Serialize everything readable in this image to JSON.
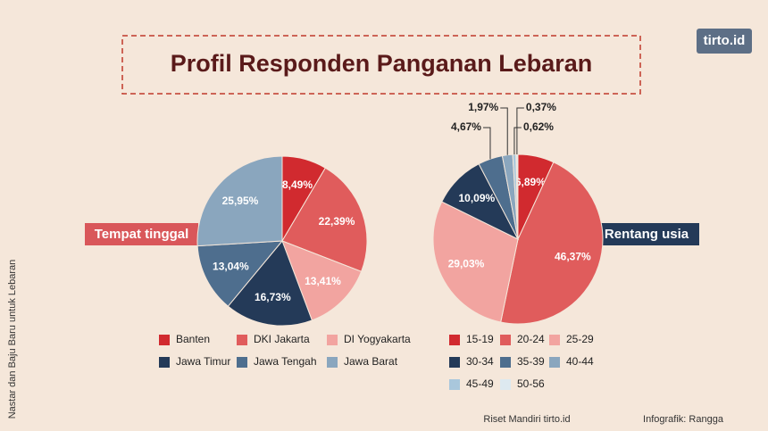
{
  "title": "Profil Responden Panganan Lebaran",
  "logo": "tirto.id",
  "side_note": "Nastar dan Baju Baru untuk Lebaran",
  "source": "Riset Mandiri tirto.id",
  "credit": "Infografik: Rangga",
  "chart_data": [
    {
      "type": "pie",
      "title": "Tempat tinggal",
      "categories": [
        "Banten",
        "DKI Jakarta",
        "DI Yogyakarta",
        "Jawa Timur",
        "Jawa Tengah",
        "Jawa Barat"
      ],
      "values": [
        8.49,
        22.39,
        13.41,
        16.73,
        13.04,
        25.95
      ],
      "value_labels": [
        "8,49%",
        "22,39%",
        "13,41%",
        "16,73%",
        "13,04%",
        "25,95%"
      ],
      "colors": [
        "#d12a2f",
        "#e05c5c",
        "#f2a4a0",
        "#243a58",
        "#4e6e8e",
        "#8aa6be"
      ]
    },
    {
      "type": "pie",
      "title": "Rentang usia",
      "categories": [
        "15-19",
        "20-24",
        "25-29",
        "30-34",
        "35-39",
        "40-44",
        "45-49",
        "50-56"
      ],
      "values": [
        6.89,
        46.37,
        29.03,
        10.09,
        4.67,
        1.97,
        0.62,
        0.37
      ],
      "value_labels": [
        "6,89%",
        "46,37%",
        "29,03%",
        "10,09%",
        "4,67%",
        "1,97%",
        "0,62%",
        "0,37%"
      ],
      "colors": [
        "#d12a2f",
        "#e05c5c",
        "#f2a4a0",
        "#243a58",
        "#4e6e8e",
        "#8aa6be",
        "#a9c7dc",
        "#dde9f0"
      ]
    }
  ]
}
